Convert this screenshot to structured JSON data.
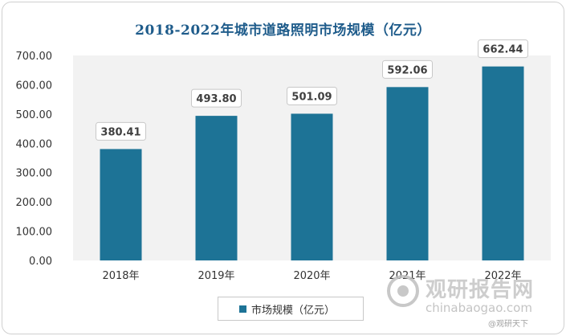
{
  "chart_data": {
    "type": "bar",
    "title": "2018-2022年城市道路照明市场规模（亿元）",
    "categories": [
      "2018年",
      "2019年",
      "2020年",
      "2021年",
      "2022年"
    ],
    "values": [
      380.41,
      493.8,
      501.09,
      592.06,
      662.44
    ],
    "value_labels": [
      "380.41",
      "493.80",
      "501.09",
      "592.06",
      "662.44"
    ],
    "series": [
      {
        "name": "市场规模（亿元）",
        "values": [
          380.41,
          493.8,
          501.09,
          592.06,
          662.44
        ]
      }
    ],
    "ylim": [
      0,
      700
    ],
    "yticks": [
      0,
      100,
      200,
      300,
      400,
      500,
      600,
      700
    ],
    "ytick_labels": [
      "0.00",
      "100.00",
      "200.00",
      "300.00",
      "400.00",
      "500.00",
      "600.00",
      "700.00"
    ],
    "xlabel": "",
    "ylabel": "",
    "grid": false,
    "legend_position": "bottom",
    "bar_color": "#1d7396",
    "plot_background": "#f2f2f2"
  },
  "watermark": {
    "brand": "观研报告网",
    "url": "chinabaogao.com",
    "footer": "@观研天下"
  }
}
